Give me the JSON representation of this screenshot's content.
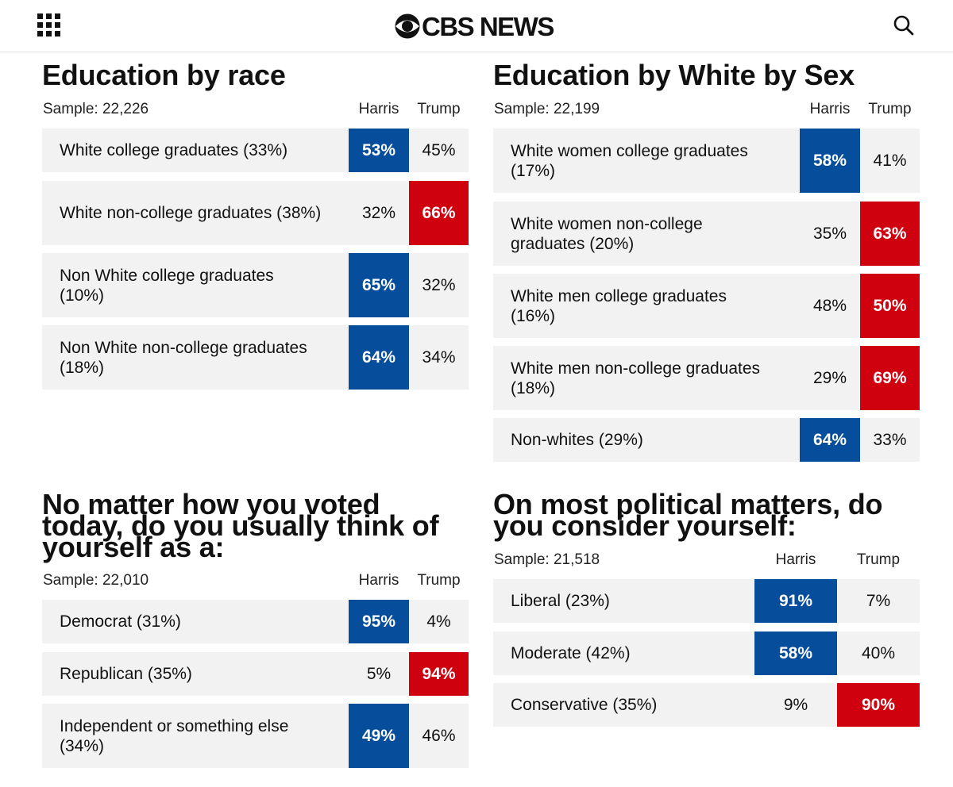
{
  "header": {
    "logo_text": "CBS NEWS",
    "menu_icon": "grid-menu-icon",
    "search_icon": "search-icon",
    "eye_icon": "cbs-eye-logo-icon"
  },
  "colors": {
    "harris_blue": "#064d9b",
    "trump_red": "#d0010f",
    "row_bg": "#f2f2f2"
  },
  "tables": [
    {
      "title": "Education by race",
      "sample": "Sample: 22,226",
      "col_harris": "Harris",
      "col_trump": "Trump",
      "rows": [
        {
          "label": "White college graduates (33%)",
          "harris": "53%",
          "trump": "45%",
          "winner": "harris"
        },
        {
          "label": "White non-college graduates (38%)",
          "harris": "32%",
          "trump": "66%",
          "winner": "trump"
        },
        {
          "label": "Non White college graduates (10%)",
          "harris": "65%",
          "trump": "32%",
          "winner": "harris"
        },
        {
          "label": "Non White non-college graduates (18%)",
          "harris": "64%",
          "trump": "34%",
          "winner": "harris"
        }
      ]
    },
    {
      "title": "Education by White by Sex",
      "sample": "Sample: 22,199",
      "col_harris": "Harris",
      "col_trump": "Trump",
      "rows": [
        {
          "label": "White women college graduates (17%)",
          "harris": "58%",
          "trump": "41%",
          "winner": "harris"
        },
        {
          "label": "White women non-college graduates (20%)",
          "harris": "35%",
          "trump": "63%",
          "winner": "trump"
        },
        {
          "label": "White men college graduates (16%)",
          "harris": "48%",
          "trump": "50%",
          "winner": "trump"
        },
        {
          "label": "White men non-college graduates (18%)",
          "harris": "29%",
          "trump": "69%",
          "winner": "trump"
        },
        {
          "label": "Non-whites (29%)",
          "harris": "64%",
          "trump": "33%",
          "winner": "harris"
        }
      ]
    },
    {
      "title": "No matter how you voted today, do you usually think of yourself as a:",
      "sample": "Sample: 22,010",
      "col_harris": "Harris",
      "col_trump": "Trump",
      "rows": [
        {
          "label": "Democrat (31%)",
          "harris": "95%",
          "trump": "4%",
          "winner": "harris"
        },
        {
          "label": "Republican (35%)",
          "harris": "5%",
          "trump": "94%",
          "winner": "trump"
        },
        {
          "label": "Independent or something else (34%)",
          "harris": "49%",
          "trump": "46%",
          "winner": "harris"
        }
      ]
    },
    {
      "title": "On most political matters, do you consider yourself:",
      "sample": "Sample: 21,518",
      "col_harris": "Harris",
      "col_trump": "Trump",
      "rows": [
        {
          "label": "Liberal (23%)",
          "harris": "91%",
          "trump": "7%",
          "winner": "harris"
        },
        {
          "label": "Moderate (42%)",
          "harris": "58%",
          "trump": "40%",
          "winner": "harris"
        },
        {
          "label": "Conservative (35%)",
          "harris": "9%",
          "trump": "90%",
          "winner": "trump"
        }
      ]
    }
  ]
}
